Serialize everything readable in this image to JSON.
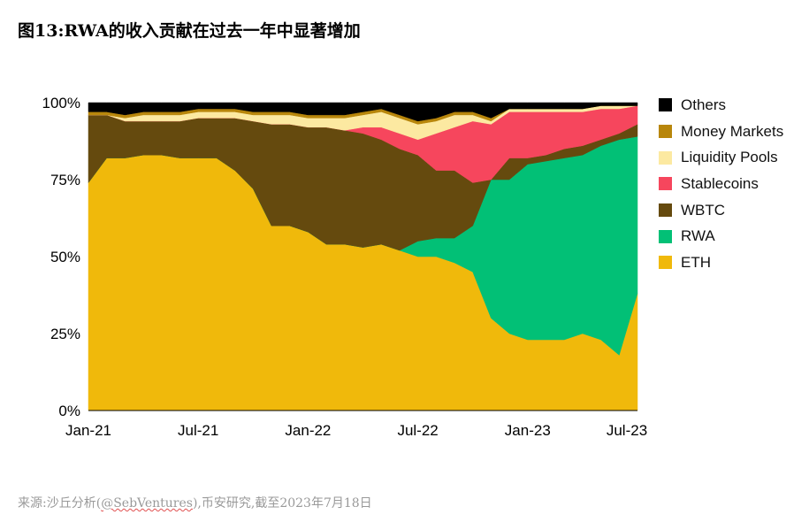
{
  "title": "图13:RWA的收入贡献在过去一年中显著增加",
  "source_prefix": "来源:沙丘分析(",
  "source_handle": "@SebVentures",
  "source_suffix": "),币安研究,截至2023年7月18日",
  "chart_data": {
    "type": "area",
    "stacked": true,
    "normalized": true,
    "y_axis": {
      "ticks": [
        "0%",
        "25%",
        "50%",
        "75%",
        "100%"
      ],
      "ylim": [
        0,
        100
      ]
    },
    "x_axis": {
      "ticks": [
        "Jan-21",
        "Jul-21",
        "Jan-22",
        "Jul-22",
        "Jan-23",
        "Jul-23"
      ]
    },
    "x": [
      "Jan-21",
      "Feb-21",
      "Mar-21",
      "Apr-21",
      "May-21",
      "Jun-21",
      "Jul-21",
      "Aug-21",
      "Sep-21",
      "Oct-21",
      "Nov-21",
      "Dec-21",
      "Jan-22",
      "Feb-22",
      "Mar-22",
      "Apr-22",
      "May-22",
      "Jun-22",
      "Jul-22",
      "Aug-22",
      "Sep-22",
      "Oct-22",
      "Nov-22",
      "Dec-22",
      "Jan-23",
      "Feb-23",
      "Mar-23",
      "Apr-23",
      "May-23",
      "Jun-23",
      "Jul-23"
    ],
    "series": [
      {
        "name": "ETH",
        "color": "#F0B90B",
        "values": [
          74,
          82,
          82,
          83,
          83,
          82,
          82,
          82,
          78,
          72,
          60,
          60,
          58,
          54,
          54,
          53,
          54,
          52,
          50,
          50,
          48,
          45,
          30,
          25,
          23,
          23,
          23,
          25,
          23,
          18,
          38
        ]
      },
      {
        "name": "RWA",
        "color": "#02C076",
        "values": [
          0,
          0,
          0,
          0,
          0,
          0,
          0,
          0,
          0,
          0,
          0,
          0,
          0,
          0,
          0,
          0,
          0,
          0,
          5,
          6,
          8,
          15,
          45,
          50,
          57,
          58,
          59,
          58,
          63,
          70,
          51
        ]
      },
      {
        "name": "WBTC",
        "color": "#654A0E",
        "values": [
          22,
          14,
          12,
          11,
          11,
          12,
          13,
          13,
          17,
          22,
          33,
          33,
          34,
          38,
          37,
          37,
          34,
          33,
          28,
          22,
          22,
          14,
          0,
          7,
          2,
          2,
          3,
          3,
          2,
          2,
          4
        ]
      },
      {
        "name": "Stablecoins",
        "color": "#F6465D",
        "values": [
          0,
          0,
          0,
          0,
          0,
          0,
          0,
          0,
          0,
          0,
          0,
          0,
          0,
          0,
          0,
          2,
          4,
          5,
          5,
          12,
          14,
          20,
          18,
          15,
          15,
          14,
          12,
          11,
          10,
          8,
          6
        ]
      },
      {
        "name": "Liquidity Pools",
        "color": "#FCE9A1",
        "values": [
          0,
          0,
          1,
          2,
          2,
          2,
          2,
          2,
          2,
          2,
          3,
          3,
          3,
          3,
          4,
          4,
          5,
          5,
          5,
          4,
          4,
          2,
          1,
          1,
          1,
          1,
          1,
          1,
          1,
          1,
          0
        ]
      },
      {
        "name": "Money Markets",
        "color": "#B8860B",
        "values": [
          1,
          1,
          1,
          1,
          1,
          1,
          1,
          1,
          1,
          1,
          1,
          1,
          1,
          1,
          1,
          1,
          1,
          1,
          1,
          1,
          1,
          1,
          1,
          0,
          0,
          0,
          0,
          0,
          0,
          0,
          0
        ]
      },
      {
        "name": "Others",
        "color": "#000000",
        "values": [
          3,
          3,
          4,
          3,
          3,
          3,
          2,
          2,
          2,
          3,
          3,
          3,
          4,
          4,
          4,
          3,
          2,
          4,
          6,
          5,
          3,
          3,
          5,
          2,
          2,
          2,
          2,
          2,
          1,
          1,
          1
        ]
      }
    ],
    "legend": {
      "position": "right",
      "items": [
        {
          "label": "Others",
          "color": "#000000"
        },
        {
          "label": "Money Markets",
          "color": "#B8860B"
        },
        {
          "label": "Liquidity Pools",
          "color": "#FCE9A1"
        },
        {
          "label": "Stablecoins",
          "color": "#F6465D"
        },
        {
          "label": "WBTC",
          "color": "#654A0E"
        },
        {
          "label": "RWA",
          "color": "#02C076"
        },
        {
          "label": "ETH",
          "color": "#F0B90B"
        }
      ]
    }
  }
}
